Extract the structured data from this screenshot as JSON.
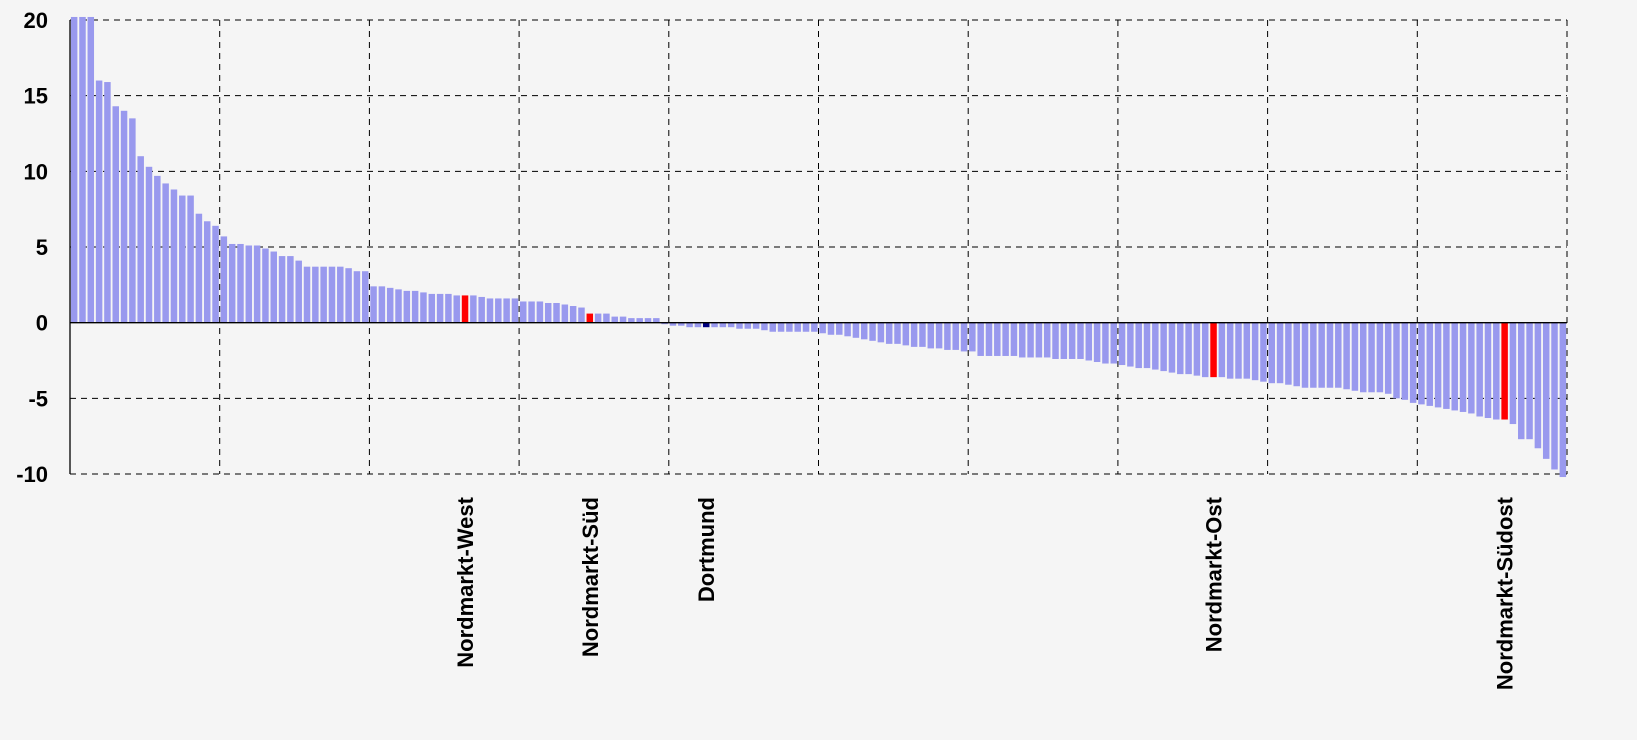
{
  "chart_data": {
    "type": "bar",
    "title": "",
    "xlabel": "",
    "ylabel": "",
    "ylim": [
      -10,
      20
    ],
    "y_ticks": [
      20,
      15,
      10,
      5,
      0,
      -5,
      -10
    ],
    "grid": true,
    "legend": "none",
    "bar_count": 180,
    "colors": {
      "default": "#9999ee",
      "highlight": "#ff0000",
      "city": "#000080",
      "background": "#f5f5f5"
    },
    "labeled_bars": [
      {
        "name": "Nordmarkt-West",
        "index": 47,
        "value": 1.8,
        "color": "#ff0000"
      },
      {
        "name": "Nordmarkt-Süd",
        "index": 62,
        "value": 0.6,
        "color": "#ff0000"
      },
      {
        "name": "Dortmund",
        "index": 76,
        "value": -0.3,
        "color": "#000080"
      },
      {
        "name": "Nordmarkt-Ost",
        "index": 137,
        "value": -3.6,
        "color": "#ff0000"
      },
      {
        "name": "Nordmarkt-Südost",
        "index": 172,
        "value": -6.4,
        "color": "#ff0000"
      }
    ],
    "values": [
      20.2,
      20.2,
      20.2,
      16.0,
      15.9,
      14.3,
      14.0,
      13.5,
      11.0,
      10.3,
      9.7,
      9.2,
      8.8,
      8.4,
      8.4,
      7.2,
      6.7,
      6.4,
      5.7,
      5.2,
      5.2,
      5.1,
      5.1,
      4.9,
      4.7,
      4.4,
      4.4,
      4.1,
      3.7,
      3.7,
      3.7,
      3.7,
      3.7,
      3.6,
      3.4,
      3.4,
      2.4,
      2.4,
      2.3,
      2.2,
      2.1,
      2.1,
      2.0,
      1.9,
      1.9,
      1.9,
      1.8,
      1.8,
      1.8,
      1.7,
      1.6,
      1.6,
      1.6,
      1.6,
      1.4,
      1.4,
      1.4,
      1.3,
      1.3,
      1.2,
      1.1,
      1.0,
      0.6,
      0.6,
      0.6,
      0.4,
      0.4,
      0.3,
      0.3,
      0.3,
      0.3,
      -0.1,
      -0.2,
      -0.2,
      -0.3,
      -0.3,
      -0.3,
      -0.3,
      -0.3,
      -0.3,
      -0.4,
      -0.4,
      -0.4,
      -0.5,
      -0.6,
      -0.6,
      -0.6,
      -0.6,
      -0.6,
      -0.6,
      -0.7,
      -0.8,
      -0.8,
      -0.9,
      -1.0,
      -1.1,
      -1.2,
      -1.3,
      -1.4,
      -1.4,
      -1.5,
      -1.6,
      -1.6,
      -1.7,
      -1.7,
      -1.8,
      -1.8,
      -1.9,
      -1.9,
      -2.2,
      -2.2,
      -2.2,
      -2.2,
      -2.2,
      -2.3,
      -2.3,
      -2.3,
      -2.3,
      -2.4,
      -2.4,
      -2.4,
      -2.4,
      -2.5,
      -2.6,
      -2.7,
      -2.7,
      -2.8,
      -2.9,
      -3.0,
      -3.0,
      -3.1,
      -3.2,
      -3.3,
      -3.4,
      -3.4,
      -3.5,
      -3.6,
      -3.6,
      -3.6,
      -3.7,
      -3.7,
      -3.7,
      -3.8,
      -3.9,
      -4.0,
      -4.0,
      -4.1,
      -4.2,
      -4.3,
      -4.3,
      -4.3,
      -4.3,
      -4.3,
      -4.4,
      -4.5,
      -4.6,
      -4.6,
      -4.6,
      -4.7,
      -5.0,
      -5.1,
      -5.3,
      -5.4,
      -5.5,
      -5.6,
      -5.7,
      -5.8,
      -5.9,
      -6.0,
      -6.2,
      -6.3,
      -6.4,
      -6.4,
      -6.7,
      -7.7,
      -7.7,
      -8.3,
      -9.0,
      -9.7,
      -10.2
    ]
  }
}
